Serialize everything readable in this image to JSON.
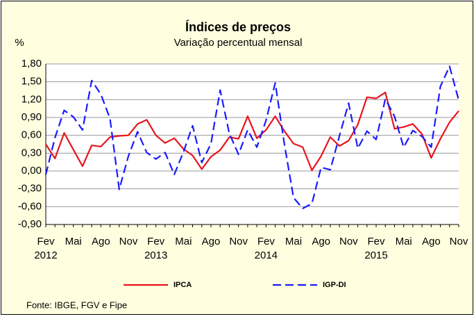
{
  "chart_data": {
    "type": "line",
    "title": "Índices de preços",
    "subtitle": "Variação percentual mensal",
    "y_label": "%",
    "source": "Fonte: IBGE, FGV e Fipe",
    "categories": [
      "Fev",
      null,
      null,
      "Mai",
      null,
      null,
      "Ago",
      null,
      null,
      "Nov",
      null,
      null,
      "Fev",
      null,
      null,
      "Mai",
      null,
      null,
      "Ago",
      null,
      null,
      "Nov",
      null,
      null,
      "Fev",
      null,
      null,
      "Mai",
      null,
      null,
      "Ago",
      null,
      null,
      "Nov",
      null,
      null,
      "Fev",
      null,
      null,
      "Mai",
      null,
      null,
      "Ago",
      null,
      null,
      "Nov"
    ],
    "category_years": [
      "2012",
      null,
      null,
      null,
      null,
      null,
      null,
      null,
      null,
      null,
      null,
      null,
      "2013",
      null,
      null,
      null,
      null,
      null,
      null,
      null,
      null,
      null,
      null,
      null,
      "2014",
      null,
      null,
      null,
      null,
      null,
      null,
      null,
      null,
      null,
      null,
      null,
      "2015",
      null,
      null,
      null,
      null,
      null,
      null,
      null,
      null,
      null
    ],
    "series": [
      {
        "name": "IPCA",
        "color": "#e8141c",
        "line_style": "solid",
        "values": [
          0.45,
          0.21,
          0.64,
          0.36,
          0.08,
          0.43,
          0.41,
          0.57,
          0.59,
          0.6,
          0.79,
          0.86,
          0.6,
          0.47,
          0.55,
          0.37,
          0.26,
          0.03,
          0.24,
          0.35,
          0.57,
          0.54,
          0.92,
          0.55,
          0.69,
          0.92,
          0.67,
          0.46,
          0.4,
          0.01,
          0.25,
          0.57,
          0.42,
          0.51,
          0.78,
          1.24,
          1.22,
          1.32,
          0.71,
          0.74,
          0.79,
          0.62,
          0.22,
          0.54,
          0.82,
          1.01
        ]
      },
      {
        "name": "IGP-DI",
        "color": "#1a1aff",
        "line_style": "dashed",
        "values": [
          -0.06,
          0.56,
          1.02,
          0.91,
          0.69,
          1.52,
          1.29,
          0.88,
          -0.31,
          0.25,
          0.66,
          0.31,
          0.2,
          0.31,
          -0.06,
          0.32,
          0.76,
          0.14,
          0.46,
          1.36,
          0.63,
          0.28,
          0.69,
          0.4,
          0.85,
          1.48,
          0.45,
          -0.45,
          -0.63,
          -0.55,
          0.06,
          0.02,
          0.59,
          1.14,
          0.38,
          0.67,
          0.53,
          1.21,
          0.92,
          0.4,
          0.68,
          0.58,
          0.4,
          1.42,
          1.76,
          1.19
        ]
      }
    ],
    "ylim": [
      -0.9,
      1.8
    ],
    "yticks": [
      {
        "value": -0.9,
        "label": "-0,90"
      },
      {
        "value": -0.6,
        "label": "-0,60"
      },
      {
        "value": -0.3,
        "label": "-0,30"
      },
      {
        "value": 0,
        "label": "0,00"
      },
      {
        "value": 0.3,
        "label": "0,30"
      },
      {
        "value": 0.6,
        "label": "0,60"
      },
      {
        "value": 0.9,
        "label": "0,90"
      },
      {
        "value": 1.2,
        "label": "1,20"
      },
      {
        "value": 1.5,
        "label": "1,50"
      },
      {
        "value": 1.8,
        "label": "1,80"
      }
    ],
    "grid": true,
    "legend": "bottom"
  }
}
